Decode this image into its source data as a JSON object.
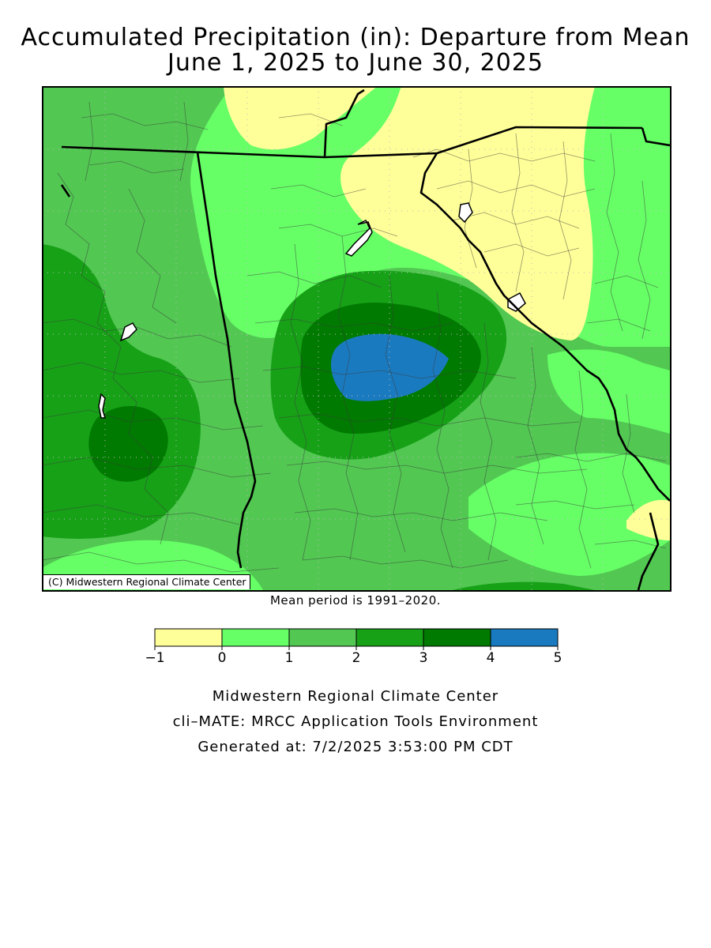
{
  "title": {
    "line1": "Accumulated Precipitation (in): Departure from Mean",
    "line2": "June 1, 2025 to June 30, 2025"
  },
  "map": {
    "copyright": "(C) Midwestern Regional Climate Center",
    "mean_note": "Mean period is 1991–2020."
  },
  "legend": {
    "bins": [
      {
        "low": -1,
        "high": 0,
        "color": "#ffff99"
      },
      {
        "low": 0,
        "high": 1,
        "color": "#66ff66"
      },
      {
        "low": 1,
        "high": 2,
        "color": "#52c752"
      },
      {
        "low": 2,
        "high": 3,
        "color": "#17a117"
      },
      {
        "low": 3,
        "high": 4,
        "color": "#007a00"
      },
      {
        "low": 4,
        "high": 5,
        "color": "#1a7abf"
      }
    ],
    "tick_labels": [
      "−1",
      "0",
      "1",
      "2",
      "3",
      "4",
      "5"
    ]
  },
  "footer": {
    "line1": "Midwestern Regional Climate Center",
    "line2": "cli–MATE: MRCC Application Tools Environment",
    "line3": "Generated at: 7/2/2025 3:53:00 PM CDT"
  }
}
